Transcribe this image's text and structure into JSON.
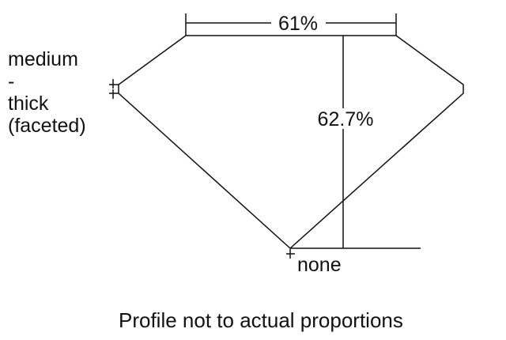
{
  "diagram": {
    "table_label": "61%",
    "depth_label": "62.7%",
    "girdle_label_lines": [
      "medium",
      "-",
      "thick",
      "(faceted)"
    ],
    "culet_label": "none",
    "caption": "Profile not to actual proportions",
    "line_color": "#111111"
  }
}
